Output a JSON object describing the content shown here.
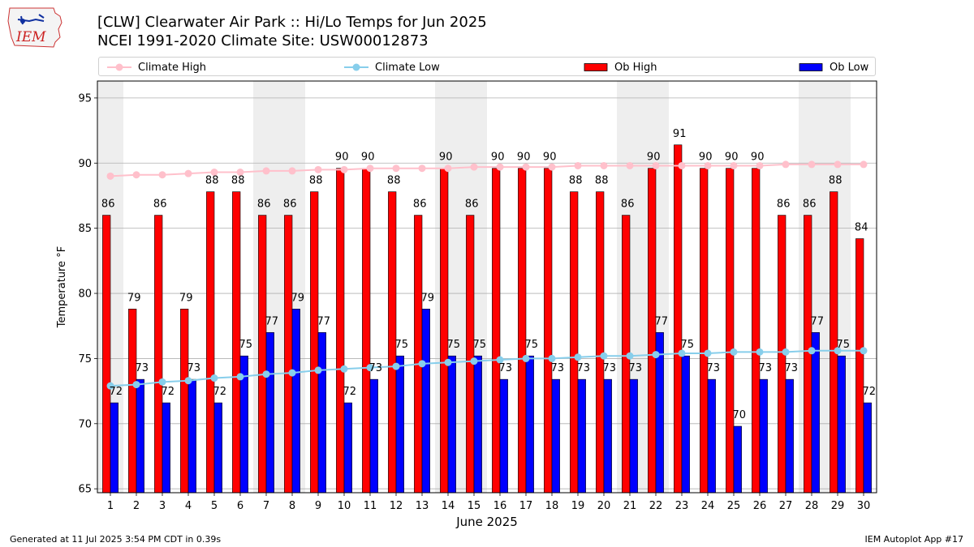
{
  "header": {
    "title_line1": "[CLW] Clearwater Air Park :: Hi/Lo Temps for Jun 2025",
    "title_line2": "NCEI 1991-2020 Climate Site: USW00012873",
    "logo_text": "IEM"
  },
  "footer": {
    "left": "Generated at 11 Jul 2025 3:54 PM CDT in 0.39s",
    "right": "IEM Autoplot App #17"
  },
  "colors": {
    "ob_high": "#ff0000",
    "ob_low": "#0000ff",
    "climate_high": "#ffc0cb",
    "climate_low": "#87ceeb",
    "weekend_shade": "#eeeeee"
  },
  "chart_data": {
    "type": "bar",
    "xlabel": "June 2025",
    "ylabel": "Temperature °F",
    "ylim": [
      64.7,
      96.3
    ],
    "yticks": [
      65,
      70,
      75,
      80,
      85,
      90,
      95
    ],
    "grid": "horizontal",
    "legend_placement": "top",
    "categories": [
      "1",
      "2",
      "3",
      "4",
      "5",
      "6",
      "7",
      "8",
      "9",
      "10",
      "11",
      "12",
      "13",
      "14",
      "15",
      "16",
      "17",
      "18",
      "19",
      "20",
      "21",
      "22",
      "23",
      "24",
      "25",
      "26",
      "27",
      "28",
      "29",
      "30"
    ],
    "weekend_days": [
      1,
      7,
      8,
      14,
      15,
      21,
      22,
      28,
      29
    ],
    "series": [
      {
        "name": "Ob High",
        "kind": "bar",
        "values": [
          86,
          79,
          86,
          79,
          88,
          88,
          86,
          86,
          88,
          90,
          90,
          88,
          86,
          90,
          86,
          90,
          90,
          90,
          88,
          88,
          86,
          90,
          91,
          90,
          90,
          90,
          86,
          86,
          88,
          84
        ],
        "bar_values": [
          86.0,
          78.8,
          86.0,
          78.8,
          87.8,
          87.8,
          86.0,
          86.0,
          87.8,
          89.6,
          89.6,
          87.8,
          86.0,
          89.6,
          86.0,
          89.6,
          89.6,
          89.6,
          87.8,
          87.8,
          86.0,
          89.6,
          91.4,
          89.6,
          89.6,
          89.6,
          86.0,
          86.0,
          87.8,
          84.2
        ]
      },
      {
        "name": "Ob Low",
        "kind": "bar",
        "values": [
          72,
          73,
          72,
          73,
          72,
          75,
          77,
          79,
          77,
          72,
          73,
          75,
          79,
          75,
          75,
          73,
          75,
          73,
          73,
          73,
          73,
          77,
          75,
          73,
          70,
          73,
          73,
          77,
          75,
          72
        ],
        "bar_values": [
          71.6,
          73.4,
          71.6,
          73.4,
          71.6,
          75.2,
          77.0,
          78.8,
          77.0,
          71.6,
          73.4,
          75.2,
          78.8,
          75.2,
          75.2,
          73.4,
          75.2,
          73.4,
          73.4,
          73.4,
          73.4,
          77.0,
          75.2,
          73.4,
          69.8,
          73.4,
          73.4,
          77.0,
          75.2,
          71.6
        ]
      },
      {
        "name": "Climate High",
        "kind": "line",
        "values": [
          89.0,
          89.1,
          89.1,
          89.2,
          89.3,
          89.3,
          89.4,
          89.4,
          89.5,
          89.5,
          89.6,
          89.6,
          89.6,
          89.6,
          89.7,
          89.7,
          89.7,
          89.7,
          89.8,
          89.8,
          89.8,
          89.8,
          89.8,
          89.8,
          89.8,
          89.8,
          89.9,
          89.9,
          89.9,
          89.9
        ]
      },
      {
        "name": "Climate Low",
        "kind": "line",
        "values": [
          72.9,
          73.0,
          73.2,
          73.3,
          73.5,
          73.6,
          73.8,
          73.9,
          74.1,
          74.2,
          74.3,
          74.4,
          74.6,
          74.7,
          74.8,
          74.9,
          75.0,
          75.0,
          75.1,
          75.2,
          75.2,
          75.3,
          75.4,
          75.4,
          75.5,
          75.5,
          75.5,
          75.6,
          75.6,
          75.6
        ]
      }
    ]
  }
}
